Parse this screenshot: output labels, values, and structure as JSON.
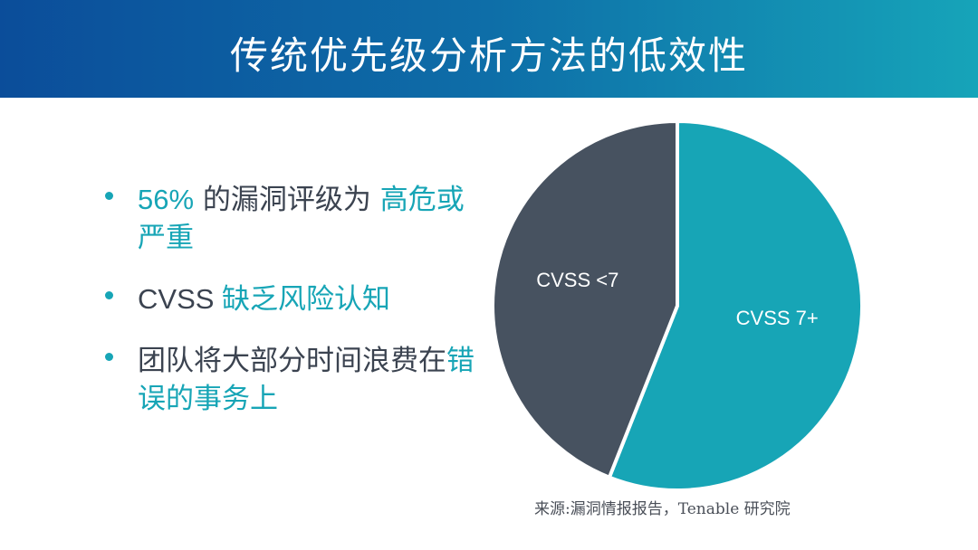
{
  "title": "传统优先级分析方法的低效性",
  "bullets": [
    {
      "parts": [
        {
          "text": "56%",
          "highlight": true,
          "latin": true
        },
        {
          "text": " 的漏洞评级为 ",
          "highlight": false
        },
        {
          "text": "高危或严重",
          "highlight": true
        }
      ]
    },
    {
      "parts": [
        {
          "text": "CVSS ",
          "highlight": false,
          "latin": true
        },
        {
          "text": "缺乏风险认知",
          "highlight": true
        }
      ]
    },
    {
      "parts": [
        {
          "text": "团队将大部分时间浪费在",
          "highlight": false
        },
        {
          "text": "错误的事务上",
          "highlight": true
        }
      ]
    }
  ],
  "chart_data": {
    "type": "pie",
    "slices": [
      {
        "label": "CVSS 7+",
        "value": 56,
        "color": "#17a5b6"
      },
      {
        "label": "CVSS <7",
        "value": 44,
        "color": "#475260"
      }
    ],
    "start_angle_deg": 0,
    "legend": "none"
  },
  "source": "来源:漏洞情报报告，Tenable 研究院",
  "colors": {
    "accent": "#17a5b6",
    "dark": "#475260",
    "text": "#3b4350"
  }
}
